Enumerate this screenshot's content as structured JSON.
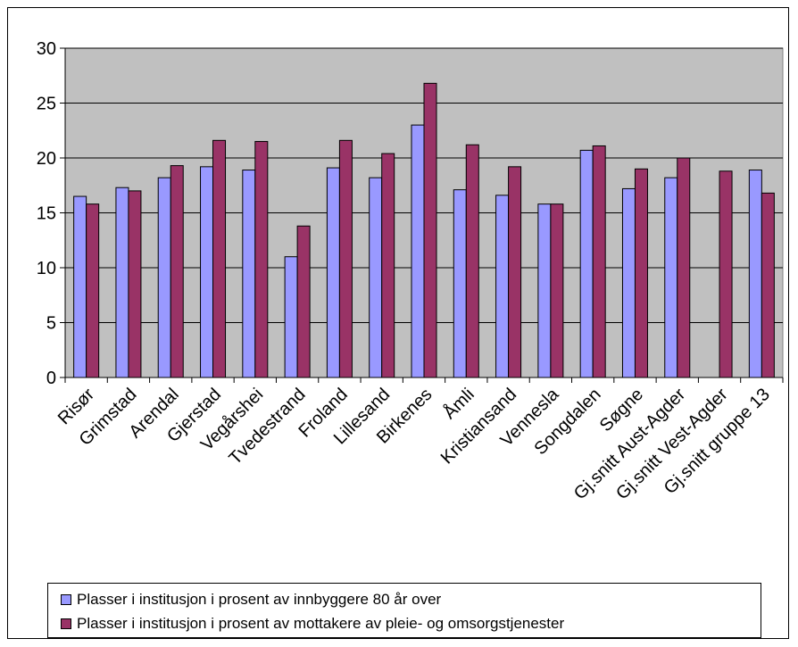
{
  "colors": {
    "plot_area": "#C0C0C0",
    "series1": "#9999FF",
    "series2": "#993366",
    "grid": "#000000"
  },
  "chart_data": {
    "type": "bar",
    "ylim": [
      0,
      30
    ],
    "yticks": [
      "0",
      "5",
      "10",
      "15",
      "20",
      "25",
      "30"
    ],
    "grid": true,
    "legend_placement": "bottom",
    "categories": [
      "Risør",
      "Grimstad",
      "Arendal",
      "Gjerstad",
      "Vegårshei",
      "Tvedestrand",
      "Froland",
      "Lillesand",
      "Birkenes",
      "Åmli",
      "Kristiansand",
      "Vennesla",
      "Songdalen",
      "Søgne",
      "Gj.snitt Aust-Agder",
      "Gj.snitt Vest-Agder",
      "Gj.snitt gruppe 13"
    ],
    "series": [
      {
        "name": "Plasser i institusjon i prosent av innbyggere 80 år over",
        "values": [
          16.5,
          17.3,
          18.2,
          19.2,
          18.9,
          11.0,
          19.1,
          18.2,
          23.0,
          17.1,
          16.6,
          15.8,
          20.7,
          17.2,
          18.2,
          null,
          18.9
        ]
      },
      {
        "name": "Plasser i institusjon i prosent av mottakere av pleie- og omsorgstjenester",
        "values": [
          15.8,
          17.0,
          19.3,
          21.6,
          21.5,
          13.8,
          21.6,
          20.4,
          26.8,
          21.2,
          19.2,
          15.8,
          21.1,
          19.0,
          20.0,
          18.8,
          16.8
        ]
      }
    ]
  }
}
